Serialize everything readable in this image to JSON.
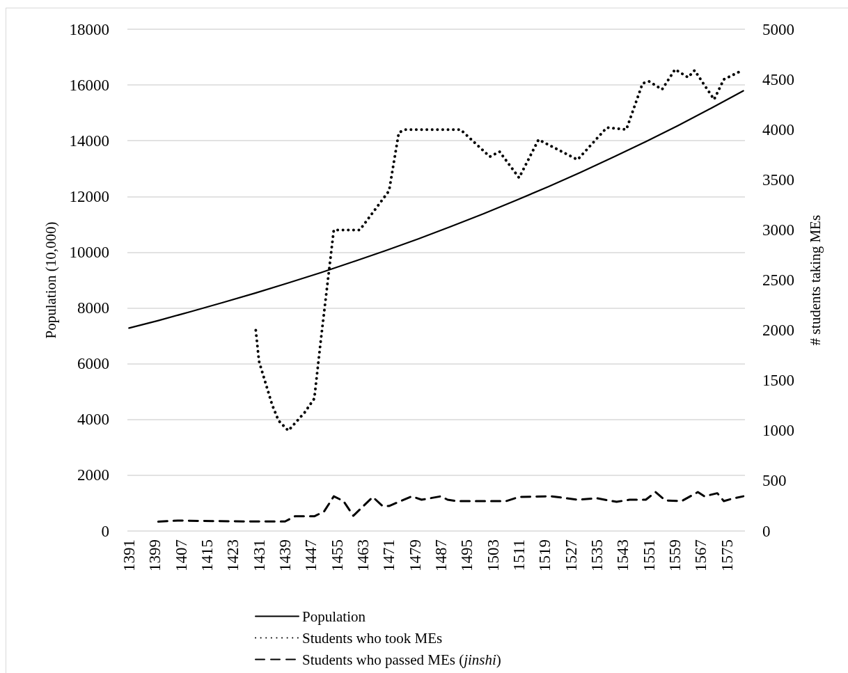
{
  "chart_data": {
    "type": "line",
    "ylabel": "Population (10,000)",
    "y2label": "# students taking MEs",
    "xlim": [
      1390.5,
      1580.5
    ],
    "xticks": [
      1391,
      1399,
      1407,
      1415,
      1423,
      1431,
      1439,
      1447,
      1455,
      1463,
      1471,
      1479,
      1487,
      1495,
      1503,
      1511,
      1519,
      1527,
      1535,
      1543,
      1551,
      1559,
      1567,
      1575
    ],
    "ylim": [
      0,
      18000
    ],
    "yticks": [
      0,
      2000,
      4000,
      6000,
      8000,
      10000,
      12000,
      14000,
      16000,
      18000
    ],
    "y2lim": [
      0,
      5000
    ],
    "y2ticks": [
      0,
      500,
      1000,
      1500,
      2000,
      2500,
      3000,
      3500,
      4000,
      4500,
      5000
    ],
    "grid": "y",
    "legend": "bottom",
    "marker": "none",
    "series": [
      {
        "name": "Population",
        "color": "#000000",
        "line_style": "solid",
        "x": [
          1391,
          1400,
          1410,
          1420,
          1430,
          1440,
          1450,
          1460,
          1470,
          1480,
          1490,
          1500,
          1510,
          1520,
          1530,
          1540,
          1550,
          1560,
          1570,
          1580
        ],
        "values": [
          7280,
          7550,
          7870,
          8200,
          8540,
          8900,
          9270,
          9660,
          10060,
          10480,
          10920,
          11380,
          11860,
          12350,
          12870,
          13410,
          13970,
          14550,
          15160,
          15790
        ]
      },
      {
        "name": "Students who took MEs",
        "color": "#000000",
        "line_style": "dotted",
        "axis": "y2",
        "x": [
          1430,
          1431,
          1435,
          1437,
          1440,
          1445,
          1448,
          1450,
          1454,
          1462,
          1471,
          1474,
          1476,
          1493,
          1502,
          1505,
          1511,
          1517,
          1529,
          1538,
          1544,
          1549,
          1551,
          1555,
          1559,
          1563,
          1565,
          1571,
          1574,
          1579
        ],
        "values": [
          2000,
          1690,
          1260,
          1100,
          1000,
          1180,
          1320,
          1900,
          3000,
          3000,
          3390,
          3970,
          4000,
          4000,
          3730,
          3780,
          3520,
          3900,
          3700,
          4020,
          4000,
          4460,
          4480,
          4400,
          4600,
          4520,
          4590,
          4300,
          4500,
          4580
        ]
      },
      {
        "name": "Students who passed MEs (jinshi)",
        "color": "#000000",
        "line_style": "dashed",
        "axis": "y2",
        "x": [
          1400,
          1406,
          1422,
          1433,
          1439,
          1442,
          1448,
          1451,
          1454,
          1457,
          1460,
          1466,
          1469,
          1471,
          1478,
          1481,
          1487,
          1489,
          1492,
          1507,
          1511,
          1521,
          1529,
          1535,
          1541,
          1545,
          1550,
          1553,
          1556,
          1561,
          1566,
          1568,
          1572,
          1574,
          1577,
          1580
        ],
        "values": [
          93,
          104,
          97,
          95,
          95,
          147,
          147,
          194,
          346,
          298,
          152,
          339,
          249,
          249,
          346,
          312,
          346,
          312,
          298,
          298,
          339,
          346,
          312,
          326,
          291,
          312,
          312,
          388,
          305,
          298,
          388,
          346,
          377,
          298,
          326,
          346
        ]
      }
    ]
  }
}
